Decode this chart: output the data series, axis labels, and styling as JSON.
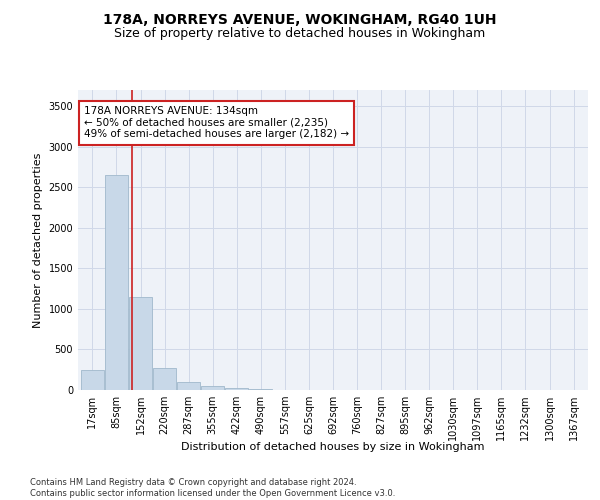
{
  "title_line1": "178A, NORREYS AVENUE, WOKINGHAM, RG40 1UH",
  "title_line2": "Size of property relative to detached houses in Wokingham",
  "xlabel": "Distribution of detached houses by size in Wokingham",
  "ylabel": "Number of detached properties",
  "footnote": "Contains HM Land Registry data © Crown copyright and database right 2024.\nContains public sector information licensed under the Open Government Licence v3.0.",
  "categories": [
    "17sqm",
    "85sqm",
    "152sqm",
    "220sqm",
    "287sqm",
    "355sqm",
    "422sqm",
    "490sqm",
    "557sqm",
    "625sqm",
    "692sqm",
    "760sqm",
    "827sqm",
    "895sqm",
    "962sqm",
    "1030sqm",
    "1097sqm",
    "1165sqm",
    "1232sqm",
    "1300sqm",
    "1367sqm"
  ],
  "values": [
    250,
    2650,
    1150,
    270,
    100,
    55,
    30,
    8,
    2,
    1,
    0,
    0,
    0,
    0,
    0,
    0,
    0,
    0,
    0,
    0,
    0
  ],
  "bar_color": "#c8d8e8",
  "bar_edge_color": "#a0b8cc",
  "grid_color": "#d0d8e8",
  "background_color": "#eef2f8",
  "vline_x_index": 1.65,
  "vline_color": "#cc2222",
  "annotation_text": "178A NORREYS AVENUE: 134sqm\n← 50% of detached houses are smaller (2,235)\n49% of semi-detached houses are larger (2,182) →",
  "annotation_box_color": "#ffffff",
  "annotation_border_color": "#cc2222",
  "ylim": [
    0,
    3700
  ],
  "yticks": [
    0,
    500,
    1000,
    1500,
    2000,
    2500,
    3000,
    3500
  ],
  "title_fontsize": 10,
  "subtitle_fontsize": 9,
  "axis_label_fontsize": 8,
  "tick_fontsize": 7,
  "annotation_fontsize": 7.5,
  "footnote_fontsize": 6
}
